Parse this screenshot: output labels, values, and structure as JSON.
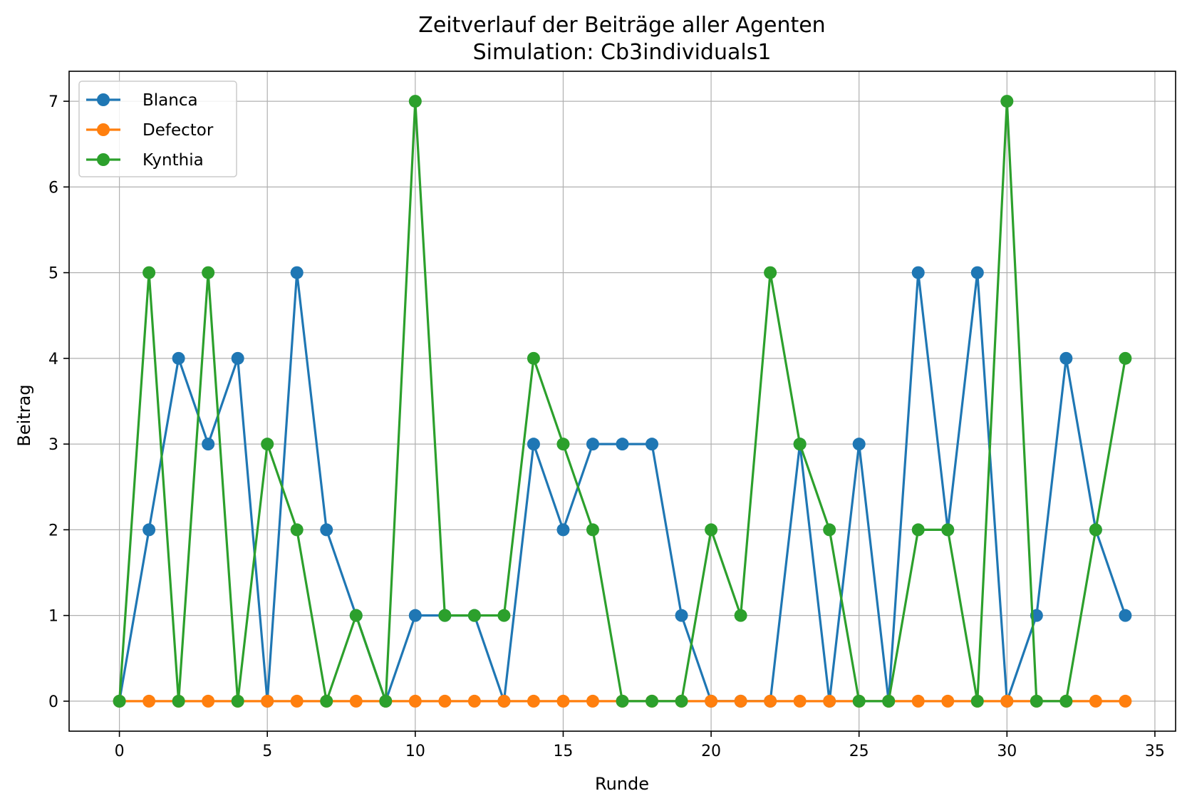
{
  "chart_data": {
    "type": "line",
    "title": "Zeitverlauf der Beiträge aller Agenten",
    "subtitle": "Simulation: Cb3individuals1",
    "xlabel": "Runde",
    "ylabel": "Beitrag",
    "xlim": [
      -1.7,
      35.7
    ],
    "ylim": [
      -0.35,
      7.35
    ],
    "xticks": [
      0,
      5,
      10,
      15,
      20,
      25,
      30,
      35
    ],
    "yticks": [
      0,
      1,
      2,
      3,
      4,
      5,
      6,
      7
    ],
    "grid": true,
    "legend_position": "top-left",
    "x": [
      0,
      1,
      2,
      3,
      4,
      5,
      6,
      7,
      8,
      9,
      10,
      11,
      12,
      13,
      14,
      15,
      16,
      17,
      18,
      19,
      20,
      21,
      22,
      23,
      24,
      25,
      26,
      27,
      28,
      29,
      30,
      31,
      32,
      33,
      34
    ],
    "series": [
      {
        "name": "Blanca",
        "color": "#1f77b4",
        "values": [
          0,
          2,
          4,
          3,
          4,
          0,
          5,
          2,
          1,
          0,
          1,
          1,
          1,
          0,
          3,
          2,
          3,
          3,
          3,
          1,
          0,
          0,
          0,
          3,
          0,
          3,
          0,
          5,
          2,
          5,
          0,
          1,
          4,
          2,
          1
        ]
      },
      {
        "name": "Defector",
        "color": "#ff7f0e",
        "values": [
          0,
          0,
          0,
          0,
          0,
          0,
          0,
          0,
          0,
          0,
          0,
          0,
          0,
          0,
          0,
          0,
          0,
          0,
          0,
          0,
          0,
          0,
          0,
          0,
          0,
          0,
          0,
          0,
          0,
          0,
          0,
          0,
          0,
          0,
          0
        ]
      },
      {
        "name": "Kynthia",
        "color": "#2ca02c",
        "values": [
          0,
          5,
          0,
          5,
          0,
          3,
          2,
          0,
          1,
          0,
          7,
          1,
          1,
          1,
          4,
          3,
          2,
          0,
          0,
          0,
          2,
          1,
          5,
          3,
          2,
          0,
          0,
          2,
          2,
          0,
          7,
          0,
          0,
          2,
          4
        ]
      }
    ]
  }
}
